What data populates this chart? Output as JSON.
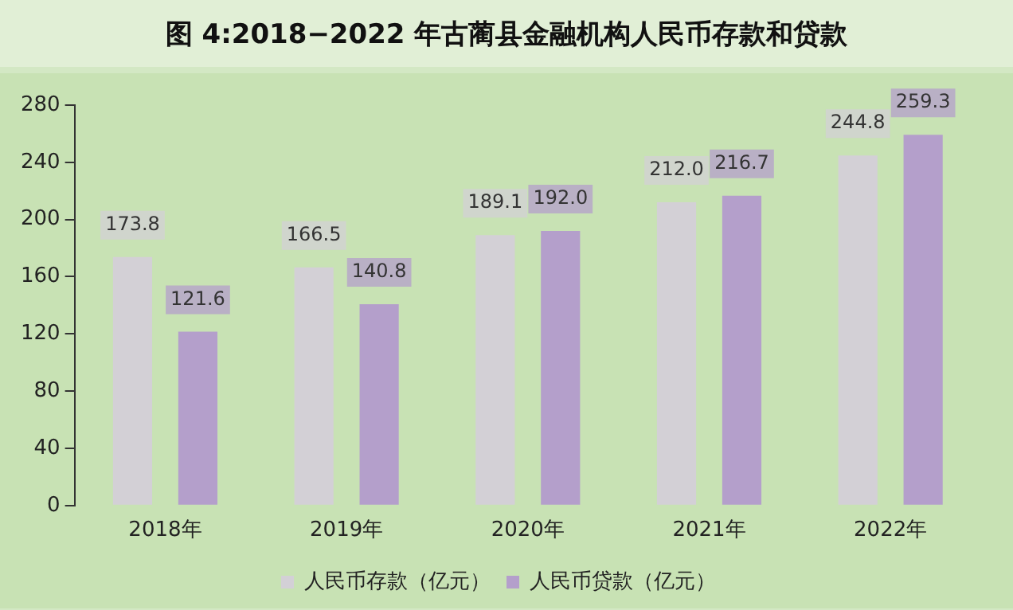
{
  "chart_data": {
    "type": "bar",
    "title": "图 4:2018−2022 年古蔺县金融机构人民币存款和贷款",
    "categories": [
      "2018年",
      "2019年",
      "2020年",
      "2021年",
      "2022年"
    ],
    "series": [
      {
        "name": "人民币存款（亿元）",
        "color": "#d3d0d6",
        "values": [
          173.8,
          166.5,
          189.1,
          212.0,
          244.8
        ],
        "value_labels": [
          "173.8",
          "166.5",
          "189.1",
          "212.0",
          "244.8"
        ]
      },
      {
        "name": "人民币贷款（亿元）",
        "color": "#b49fcb",
        "values": [
          121.6,
          140.8,
          192.0,
          216.7,
          259.3
        ],
        "value_labels": [
          "121.6",
          "140.8",
          "192.0",
          "216.7",
          "259.3"
        ]
      }
    ],
    "ylim": [
      0,
      280
    ],
    "yticks": [
      0,
      40,
      80,
      120,
      160,
      200,
      240,
      280
    ],
    "grid": false,
    "legend": "bottom"
  }
}
